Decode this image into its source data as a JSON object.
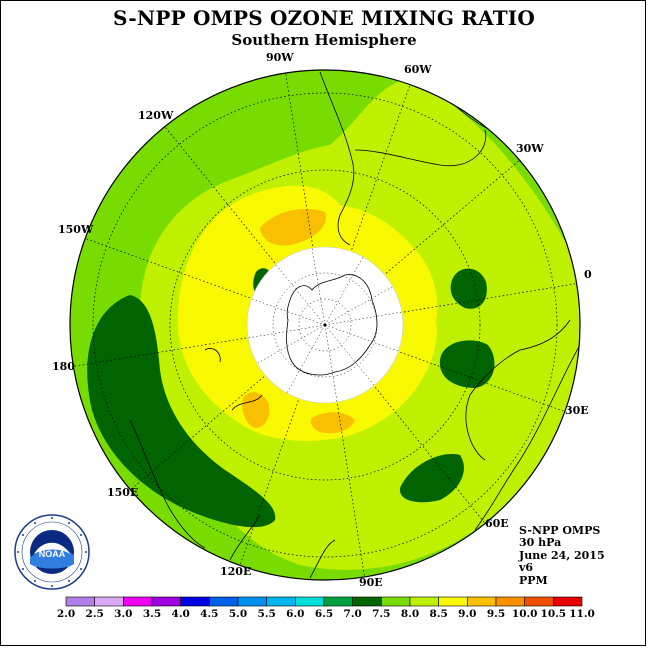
{
  "title": "S-NPP OMPS OZONE MIXING RATIO",
  "subtitle": "Southern Hemisphere",
  "longitude_labels": {
    "lon_90w": "90W",
    "lon_60w": "60W",
    "lon_30w": "30W",
    "lon_0": "0",
    "lon_30e": "30E",
    "lon_60e": "60E",
    "lon_90e": "90E",
    "lon_120e": "120E",
    "lon_150e": "150E",
    "lon_180": "180",
    "lon_150w": "150W",
    "lon_120w": "120W"
  },
  "info": {
    "instrument": "S-NPP OMPS",
    "pressure": "30 hPa",
    "date": "June 24, 2015",
    "version": "v6",
    "units": "PPM"
  },
  "logo": {
    "text": "NOAA",
    "icon": "noaa-logo-icon"
  },
  "colorbar": {
    "ticks": [
      "2.0",
      "2.5",
      "3.0",
      "3.5",
      "4.0",
      "4.5",
      "5.0",
      "5.5",
      "6.0",
      "6.5",
      "7.0",
      "7.5",
      "8.0",
      "8.5",
      "9.0",
      "9.5",
      "10.0",
      "10.5",
      "11.0"
    ],
    "colors": [
      "#b080e8",
      "#d8a8f0",
      "#f000f0",
      "#a000e0",
      "#0000e0",
      "#0060e8",
      "#0090f0",
      "#00b4f0",
      "#00e0d8",
      "#00a040",
      "#006400",
      "#78dc00",
      "#bef000",
      "#f8f800",
      "#f8c000",
      "#f89000",
      "#f05000",
      "#e80000",
      "#805030"
    ]
  },
  "colors": {
    "fill_7_0": "#006400",
    "fill_7_5": "#78dc00",
    "fill_8_0": "#bef000",
    "fill_8_5": "#f8f800",
    "fill_9_0": "#f8c000",
    "no_data": "#ffffff"
  }
}
